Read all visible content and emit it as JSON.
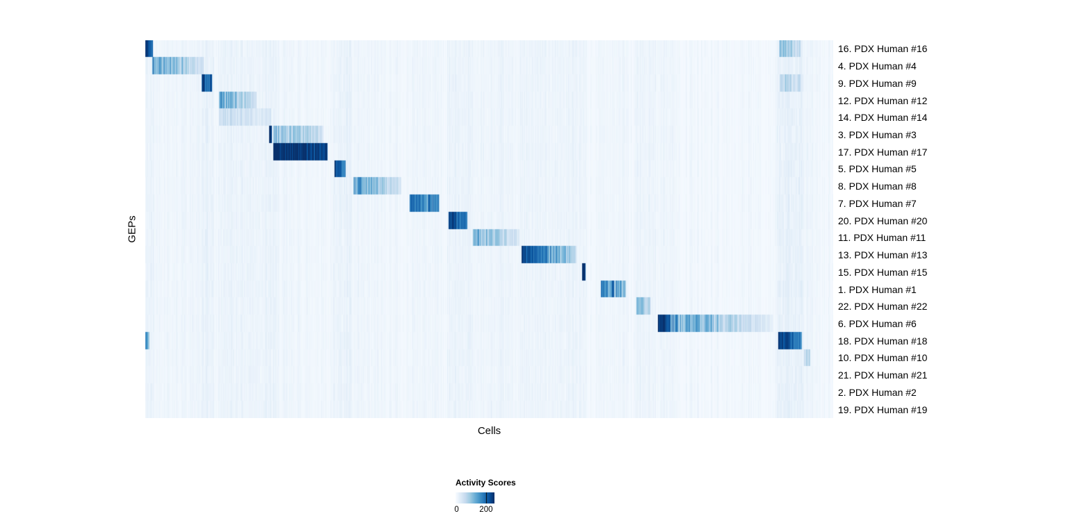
{
  "chart_data": {
    "type": "heatmap",
    "title": "",
    "xlabel": "Cells",
    "ylabel": "GEPs",
    "legend_title": "Activity Scores",
    "legend_ticks": [
      0,
      200
    ],
    "legend_tick_labels": [
      "0",
      "200"
    ],
    "value_range": [
      0,
      255
    ],
    "colormap_stops": [
      "#f7fbff",
      "#deebf7",
      "#c6dbef",
      "#9ecae1",
      "#6baed6",
      "#4292c6",
      "#2171b5",
      "#08519c",
      "#08306b"
    ],
    "rows": [
      {
        "label": "16. PDX Human #16",
        "segments": [
          [
            0.0,
            0.011,
            245,
            160
          ],
          [
            0.922,
            0.952,
            75,
            40
          ]
        ]
      },
      {
        "label": "4. PDX Human #4",
        "segments": [
          [
            0.01,
            0.084,
            130,
            35
          ]
        ]
      },
      {
        "label": "9. PDX Human #9",
        "segments": [
          [
            0.081,
            0.097,
            220,
            130
          ],
          [
            0.922,
            0.952,
            60,
            35
          ]
        ]
      },
      {
        "label": "12. PDX Human #12",
        "segments": [
          [
            0.107,
            0.161,
            120,
            40
          ]
        ]
      },
      {
        "label": "14. PDX Human #14",
        "segments": [
          [
            0.107,
            0.183,
            45,
            18
          ]
        ]
      },
      {
        "label": "3. PDX Human #3",
        "segments": [
          [
            0.179,
            0.184,
            250,
            250
          ],
          [
            0.186,
            0.258,
            100,
            45
          ]
        ]
      },
      {
        "label": "17. PDX Human #17",
        "segments": [
          [
            0.186,
            0.264,
            250,
            230
          ]
        ]
      },
      {
        "label": "5. PDX Human #5",
        "segments": [
          [
            0.275,
            0.291,
            210,
            140
          ]
        ]
      },
      {
        "label": "8. PDX Human #8",
        "segments": [
          [
            0.302,
            0.372,
            135,
            35
          ]
        ]
      },
      {
        "label": "7. PDX Human #7",
        "segments": [
          [
            0.384,
            0.427,
            185,
            125
          ]
        ]
      },
      {
        "label": "20. PDX Human #20",
        "segments": [
          [
            0.44,
            0.468,
            225,
            160
          ]
        ]
      },
      {
        "label": "11. PDX Human #11",
        "segments": [
          [
            0.476,
            0.543,
            110,
            35
          ]
        ]
      },
      {
        "label": "13. PDX Human #13",
        "segments": [
          [
            0.547,
            0.626,
            225,
            55
          ]
        ]
      },
      {
        "label": "15. PDX Human #15",
        "segments": [
          [
            0.634,
            0.64,
            230,
            230
          ]
        ]
      },
      {
        "label": "1. PDX Human #1",
        "segments": [
          [
            0.662,
            0.698,
            165,
            110
          ]
        ]
      },
      {
        "label": "22. PDX Human #22",
        "segments": [
          [
            0.713,
            0.735,
            95,
            55
          ]
        ]
      },
      {
        "label": "6. PDX Human #6",
        "segments": [
          [
            0.745,
            0.763,
            250,
            200
          ],
          [
            0.763,
            0.913,
            135,
            18
          ]
        ]
      },
      {
        "label": "18. PDX Human #18",
        "segments": [
          [
            0.0,
            0.006,
            150,
            95
          ],
          [
            0.92,
            0.954,
            235,
            150
          ]
        ]
      },
      {
        "label": "10. PDX Human #10",
        "segments": [
          [
            0.957,
            0.966,
            70,
            45
          ]
        ]
      },
      {
        "label": "21. PDX Human #21",
        "segments": []
      },
      {
        "label": "2. PDX Human #2",
        "segments": []
      },
      {
        "label": "19. PDX Human #19",
        "segments": []
      }
    ],
    "crosstalk_bands": [
      [
        0.0,
        0.012,
        8
      ],
      [
        0.012,
        0.084,
        4
      ],
      [
        0.081,
        0.1,
        9
      ],
      [
        0.106,
        0.19,
        8
      ],
      [
        0.186,
        0.264,
        3
      ],
      [
        0.273,
        0.3,
        9
      ],
      [
        0.302,
        0.372,
        3
      ],
      [
        0.382,
        0.43,
        4
      ],
      [
        0.438,
        0.476,
        8
      ],
      [
        0.476,
        0.545,
        4
      ],
      [
        0.545,
        0.632,
        6
      ],
      [
        0.632,
        0.642,
        4
      ],
      [
        0.66,
        0.7,
        4
      ],
      [
        0.71,
        0.742,
        6
      ],
      [
        0.743,
        0.77,
        5
      ],
      [
        0.918,
        0.956,
        12
      ],
      [
        0.956,
        0.97,
        5
      ]
    ],
    "noise": {
      "base": 3,
      "column_stripe": 6
    }
  }
}
